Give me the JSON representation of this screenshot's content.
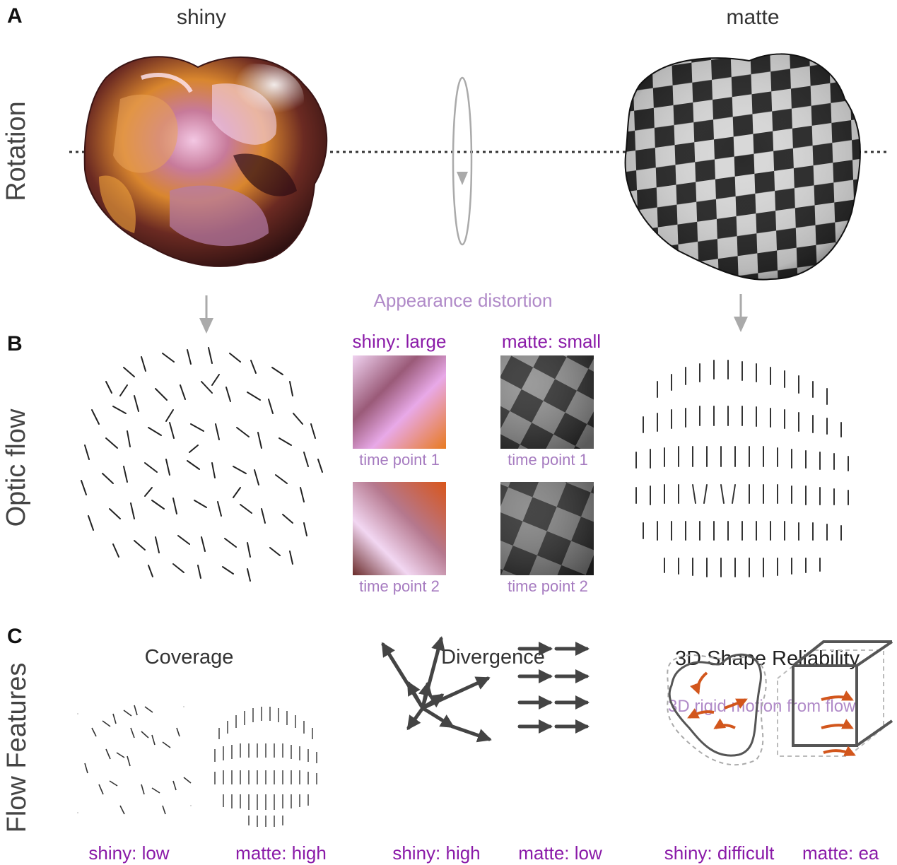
{
  "panels": {
    "a": "A",
    "b": "B",
    "c": "C"
  },
  "row_labels": {
    "rotation": "Rotation",
    "optic_flow": "Optic flow",
    "flow_features": "Flow Features"
  },
  "panel_a": {
    "shiny_title": "shiny",
    "matte_title": "matte"
  },
  "panel_b": {
    "distortion_title": "Appearance distortion",
    "shiny_label": "shiny: large",
    "matte_label": "matte: small",
    "shiny_tp1": "time point 1",
    "shiny_tp2": "time point 2",
    "matte_tp1": "time point 1",
    "matte_tp2": "time point 2"
  },
  "panel_c": {
    "coverage_title": "Coverage",
    "divergence_title": "Divergence",
    "reliability_title": "3D Shape Reliability",
    "reliability_subtitle": "3D rigid motion from flow",
    "coverage_shiny": "shiny: low",
    "coverage_matte": "matte: high",
    "divergence_shiny": "shiny: high",
    "divergence_matte": "matte: low",
    "reliability_shiny": "shiny: difficult",
    "reliability_matte": "matte: ea"
  },
  "colors": {
    "purple": "#8a1aa8",
    "lilac": "#a67bc0",
    "arrow_gray": "#444444",
    "motion_orange": "#d2561c"
  }
}
